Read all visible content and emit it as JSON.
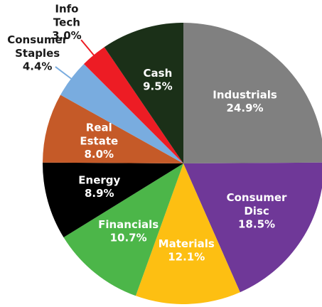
{
  "chart_data": {
    "type": "pie",
    "categories": [
      "Industrials",
      "Consumer Disc",
      "Materials",
      "Financials",
      "Energy",
      "Real Estate",
      "Consumer Staples",
      "Info Tech",
      "Cash"
    ],
    "values": [
      24.9,
      18.5,
      12.1,
      10.7,
      8.9,
      8.0,
      4.4,
      3.0,
      9.5
    ],
    "value_labels": [
      "24.9%",
      "18.5%",
      "12.1%",
      "10.7%",
      "8.9%",
      "8.0%",
      "4.4%",
      "3.0%",
      "9.5%"
    ],
    "colors": [
      "#808080",
      "#6f3898",
      "#fdbf12",
      "#4cb649",
      "#000000",
      "#c55a28",
      "#79acdf",
      "#ed1c24",
      "#1b3018"
    ]
  }
}
